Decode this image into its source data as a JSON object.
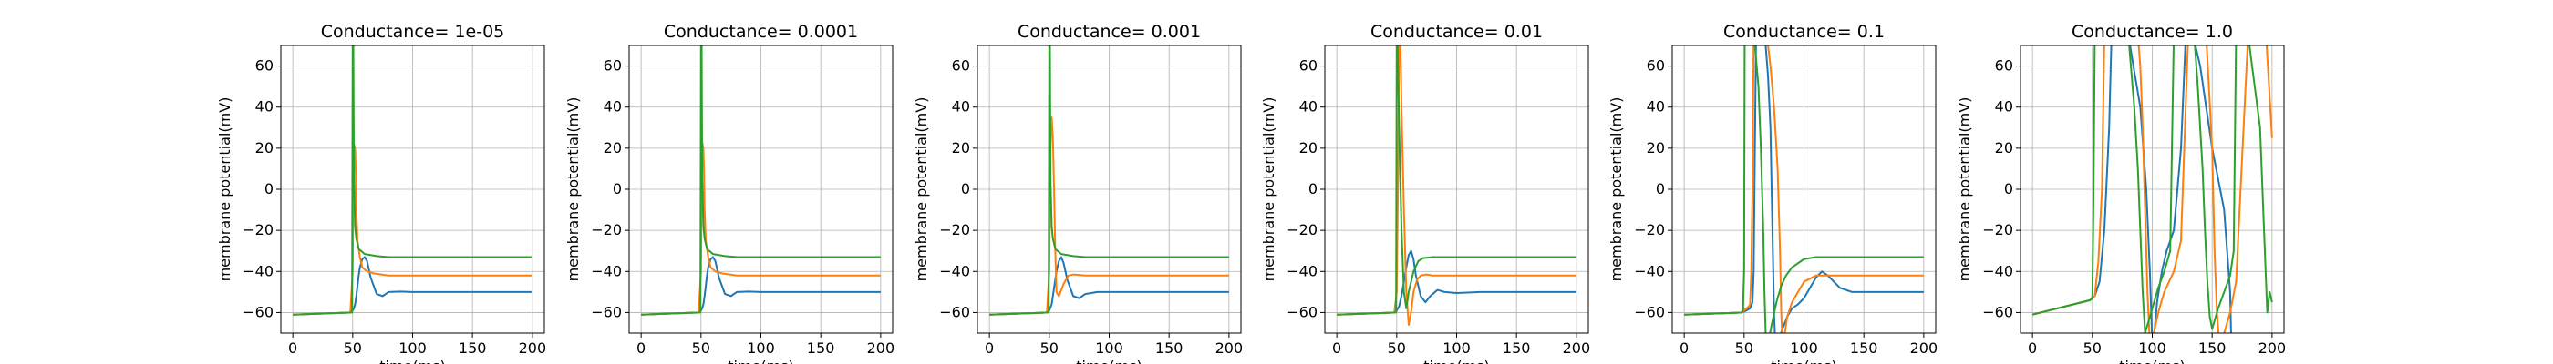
{
  "chart_data": [
    {
      "type": "line",
      "title": "Conductance= 1e-05",
      "xlabel": "time(ms)",
      "ylabel": "membrane potential(mV)",
      "xlim": [
        -10,
        210
      ],
      "ylim": [
        -70,
        70
      ],
      "xticks": [
        "0",
        "50",
        "100",
        "150",
        "200"
      ],
      "yticks": [
        "−60",
        "−40",
        "−20",
        "0",
        "20",
        "40",
        "60"
      ],
      "grid": true,
      "colors": [
        "#1f77b4",
        "#ff7f0e",
        "#2ca02c"
      ],
      "series": [
        {
          "x": [
            0,
            48,
            50,
            51,
            52,
            53,
            54,
            55,
            56,
            58,
            60,
            62,
            65,
            70,
            75,
            80,
            90,
            100,
            120,
            150,
            200
          ],
          "y": [
            -61,
            -60,
            -59,
            -58,
            -56,
            -52,
            -47,
            -42,
            -38,
            -34,
            -33,
            -35,
            -43,
            -51,
            -52,
            -50,
            -49.8,
            -50,
            -50,
            -50,
            -50
          ]
        },
        {
          "x": [
            0,
            48,
            50,
            50.5,
            51,
            52,
            52.5,
            53,
            54,
            56,
            58,
            62,
            68,
            80,
            100,
            200
          ],
          "y": [
            -61,
            -60,
            -40,
            0,
            22,
            20,
            10,
            -10,
            -25,
            -33,
            -38,
            -40,
            -41,
            -42,
            -42,
            -42
          ]
        },
        {
          "x": [
            0,
            48,
            49.5,
            50,
            50.5,
            51,
            52,
            53,
            55,
            60,
            70,
            80,
            100,
            150,
            200
          ],
          "y": [
            -61,
            -60,
            -60,
            75,
            75,
            5,
            -18,
            -24,
            -29,
            -31.5,
            -32.5,
            -33,
            -33,
            -33,
            -33
          ]
        }
      ]
    },
    {
      "type": "line",
      "title": "Conductance= 0.0001",
      "xlabel": "time(ms)",
      "ylabel": "membrane potential(mV)",
      "xlim": [
        -10,
        210
      ],
      "ylim": [
        -70,
        70
      ],
      "xticks": [
        "0",
        "50",
        "100",
        "150",
        "200"
      ],
      "yticks": [
        "−60",
        "−40",
        "−20",
        "0",
        "20",
        "40",
        "60"
      ],
      "grid": true,
      "colors": [
        "#1f77b4",
        "#ff7f0e",
        "#2ca02c"
      ],
      "series": [
        {
          "x": [
            0,
            48,
            50,
            51,
            52,
            53,
            54,
            55,
            56,
            58,
            60,
            62,
            65,
            70,
            75,
            80,
            90,
            100,
            120,
            150,
            200
          ],
          "y": [
            -61,
            -60,
            -59,
            -58,
            -56,
            -52,
            -47,
            -42,
            -38,
            -34,
            -33,
            -35,
            -43,
            -51,
            -52,
            -50,
            -49.8,
            -50,
            -50,
            -50,
            -50
          ]
        },
        {
          "x": [
            0,
            48,
            50,
            50.5,
            51,
            52,
            52.5,
            53,
            54,
            56,
            58,
            62,
            68,
            80,
            100,
            200
          ],
          "y": [
            -61,
            -60,
            -40,
            0,
            23,
            20,
            10,
            -10,
            -25,
            -33,
            -38,
            -40,
            -41,
            -42,
            -42,
            -42
          ]
        },
        {
          "x": [
            0,
            48,
            49.5,
            50,
            50.5,
            51,
            52,
            53,
            55,
            60,
            70,
            80,
            100,
            150,
            200
          ],
          "y": [
            -61,
            -60,
            -60,
            75,
            75,
            5,
            -18,
            -24,
            -29,
            -31.5,
            -32.5,
            -33,
            -33,
            -33,
            -33
          ]
        }
      ]
    },
    {
      "type": "line",
      "title": "Conductance= 0.001",
      "xlabel": "time(ms)",
      "ylabel": "membrane potential(mV)",
      "xlim": [
        -10,
        210
      ],
      "ylim": [
        -70,
        70
      ],
      "xticks": [
        "0",
        "50",
        "100",
        "150",
        "200"
      ],
      "yticks": [
        "−60",
        "−40",
        "−20",
        "0",
        "20",
        "40",
        "60"
      ],
      "grid": true,
      "colors": [
        "#1f77b4",
        "#ff7f0e",
        "#2ca02c"
      ],
      "series": [
        {
          "x": [
            0,
            48,
            50,
            52,
            54,
            56,
            58,
            60,
            62,
            65,
            70,
            75,
            80,
            90,
            100,
            120,
            200
          ],
          "y": [
            -61,
            -60,
            -59,
            -56,
            -48,
            -40,
            -35,
            -33,
            -36,
            -44,
            -52,
            -53,
            -51,
            -50,
            -50,
            -50,
            -50
          ]
        },
        {
          "x": [
            0,
            48,
            50,
            51,
            52,
            53,
            54,
            55,
            56,
            58,
            62,
            66,
            70,
            80,
            100,
            200
          ],
          "y": [
            -61,
            -60,
            -40,
            20,
            35,
            25,
            0,
            -30,
            -50,
            -52,
            -46,
            -42,
            -41.5,
            -42,
            -42,
            -42
          ]
        },
        {
          "x": [
            0,
            48,
            49.5,
            50,
            50.5,
            51,
            52,
            53,
            55,
            60,
            70,
            80,
            100,
            150,
            200
          ],
          "y": [
            -61,
            -60,
            -60,
            75,
            75,
            5,
            -18,
            -24,
            -29,
            -31.5,
            -32.5,
            -33,
            -33,
            -33,
            -33
          ]
        }
      ]
    },
    {
      "type": "line",
      "title": "Conductance= 0.01",
      "xlabel": "time(ms)",
      "ylabel": "membrane potential(mV)",
      "xlim": [
        -10,
        210
      ],
      "ylim": [
        -70,
        70
      ],
      "xticks": [
        "0",
        "50",
        "100",
        "150",
        "200"
      ],
      "yticks": [
        "−60",
        "−40",
        "−20",
        "0",
        "20",
        "40",
        "60"
      ],
      "grid": true,
      "colors": [
        "#1f77b4",
        "#ff7f0e",
        "#2ca02c"
      ],
      "series": [
        {
          "x": [
            0,
            48,
            50,
            52,
            54,
            56,
            58,
            60,
            62,
            64,
            66,
            70,
            74,
            78,
            84,
            90,
            100,
            120,
            200
          ],
          "y": [
            -61,
            -60,
            -59,
            -57,
            -52,
            -45,
            -38,
            -32,
            -30,
            -34,
            -42,
            -52,
            -55,
            -52,
            -49,
            -50,
            -50.5,
            -50,
            -50
          ]
        },
        {
          "x": [
            0,
            48,
            50,
            51,
            52,
            53,
            54,
            56,
            58,
            60,
            62,
            64,
            67,
            70,
            75,
            80,
            100,
            200
          ],
          "y": [
            -61,
            -60,
            -50,
            0,
            75,
            75,
            40,
            -10,
            -50,
            -66,
            -60,
            -50,
            -44,
            -42,
            -41.5,
            -42,
            -42,
            -42
          ]
        },
        {
          "x": [
            0,
            48,
            49.5,
            50,
            50.5,
            51,
            52,
            54,
            56,
            58,
            60,
            64,
            68,
            72,
            80,
            100,
            200
          ],
          "y": [
            -61,
            -60,
            -60,
            75,
            75,
            60,
            30,
            -20,
            -50,
            -58,
            -50,
            -40,
            -35,
            -33.5,
            -33,
            -33,
            -33
          ]
        }
      ]
    },
    {
      "type": "line",
      "title": "Conductance= 0.1",
      "xlabel": "time(ms)",
      "ylabel": "membrane potential(mV)",
      "xlim": [
        -10,
        210
      ],
      "ylim": [
        -70,
        70
      ],
      "xticks": [
        "0",
        "50",
        "100",
        "150",
        "200"
      ],
      "yticks": [
        "−60",
        "−40",
        "−20",
        "0",
        "20",
        "40",
        "60"
      ],
      "grid": true,
      "colors": [
        "#1f77b4",
        "#ff7f0e",
        "#2ca02c"
      ],
      "series": [
        {
          "x": [
            0,
            48,
            52,
            55,
            57,
            58,
            59,
            60,
            61,
            64,
            66,
            68,
            70,
            72,
            73,
            74,
            75,
            76,
            78,
            82,
            86,
            90,
            95,
            100,
            105,
            110,
            115,
            120,
            125,
            130,
            140,
            160,
            200
          ],
          "y": [
            -61,
            -60,
            -59,
            -58,
            -55,
            -40,
            20,
            75,
            75,
            75,
            75,
            70,
            55,
            30,
            0,
            -30,
            -60,
            -75,
            -75,
            -68,
            -62,
            -58,
            -56,
            -53,
            -48,
            -43,
            -40,
            -42,
            -45,
            -48,
            -50,
            -50,
            -50
          ]
        },
        {
          "x": [
            0,
            48,
            50,
            52,
            54,
            55,
            56,
            57,
            58,
            60,
            63,
            66,
            69,
            72,
            75,
            78,
            80,
            81,
            82,
            83,
            84,
            86,
            90,
            95,
            100,
            110,
            120,
            150,
            200
          ],
          "y": [
            -61,
            -60,
            -59,
            -58,
            -57,
            -56,
            -40,
            0,
            75,
            75,
            75,
            75,
            75,
            60,
            40,
            10,
            -30,
            -60,
            -75,
            -75,
            -70,
            -62,
            -55,
            -50,
            -45,
            -42,
            -42,
            -42,
            -42
          ]
        },
        {
          "x": [
            0,
            48,
            49,
            50,
            50.5,
            51,
            53,
            56,
            59,
            62,
            64,
            66,
            67,
            68,
            70,
            73,
            77,
            81,
            85,
            90,
            100,
            110,
            120,
            150,
            200
          ],
          "y": [
            -61,
            -60,
            -59,
            -40,
            75,
            75,
            75,
            75,
            70,
            50,
            20,
            -20,
            -50,
            -70,
            -75,
            -66,
            -55,
            -47,
            -42,
            -38,
            -34,
            -33,
            -33,
            -33,
            -33
          ]
        }
      ]
    },
    {
      "type": "line",
      "title": "Conductance= 1.0",
      "xlabel": "time(ms)",
      "ylabel": "membrane potential(mV)",
      "xlim": [
        -10,
        210
      ],
      "ylim": [
        -70,
        70
      ],
      "xticks": [
        "0",
        "50",
        "100",
        "150",
        "200"
      ],
      "yticks": [
        "−60",
        "−40",
        "−20",
        "0",
        "20",
        "40",
        "60"
      ],
      "grid": true,
      "colors": [
        "#1f77b4",
        "#ff7f0e",
        "#2ca02c"
      ],
      "series": [
        {
          "x": [
            0,
            48,
            50,
            52,
            56,
            60,
            64,
            66,
            67,
            68,
            70,
            80,
            90,
            95,
            98,
            100,
            101,
            102,
            104,
            108,
            112,
            118,
            124,
            128,
            131,
            132,
            134,
            140,
            150,
            160,
            165,
            166,
            167,
            168,
            170
          ],
          "y": [
            -61,
            -54,
            -53,
            -52,
            -45,
            -20,
            30,
            75,
            75,
            75,
            75,
            75,
            40,
            0,
            -40,
            -75,
            -75,
            -68,
            -55,
            -40,
            -30,
            -20,
            20,
            75,
            75,
            75,
            75,
            60,
            20,
            -10,
            -50,
            -75,
            -75,
            -75,
            -75
          ]
        },
        {
          "x": [
            0,
            48,
            50,
            52,
            55,
            58,
            60,
            62,
            65,
            70,
            75,
            80,
            88,
            90,
            92,
            94,
            96,
            98,
            100,
            102,
            105,
            110,
            118,
            124,
            130,
            138,
            145,
            150,
            152,
            154,
            156,
            160,
            165,
            170,
            180,
            195,
            200
          ],
          "y": [
            -61,
            -54,
            -53,
            -52,
            -35,
            0,
            75,
            75,
            75,
            75,
            75,
            75,
            75,
            60,
            30,
            -10,
            -50,
            -75,
            -75,
            -68,
            -60,
            -50,
            -40,
            -25,
            75,
            75,
            75,
            20,
            -30,
            -60,
            -75,
            -70,
            -60,
            -45,
            75,
            75,
            25
          ]
        },
        {
          "x": [
            0,
            48,
            50,
            51,
            52,
            54,
            60,
            70,
            80,
            85,
            88,
            90,
            92,
            94,
            96,
            100,
            105,
            110,
            115,
            118,
            120,
            125,
            130,
            135,
            138,
            140,
            142,
            144,
            146,
            148,
            150,
            152,
            155,
            160,
            165,
            168,
            170,
            172,
            175,
            180,
            190,
            196,
            198,
            200
          ],
          "y": [
            -61,
            -54,
            -53,
            0,
            75,
            75,
            75,
            75,
            75,
            40,
            10,
            -20,
            -50,
            -70,
            -66,
            -58,
            -48,
            -40,
            -30,
            75,
            75,
            75,
            75,
            75,
            50,
            30,
            10,
            -20,
            -45,
            -62,
            -68,
            -64,
            -58,
            -50,
            -42,
            -30,
            75,
            75,
            75,
            75,
            30,
            -60,
            -50,
            -55
          ]
        }
      ]
    }
  ]
}
